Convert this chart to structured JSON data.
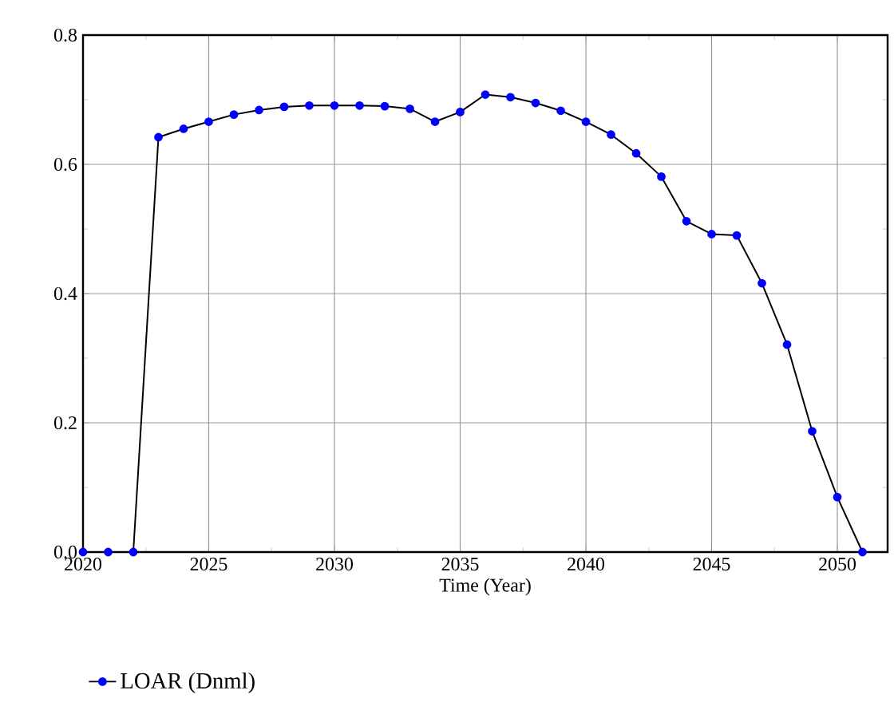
{
  "chart_data": {
    "type": "line",
    "xlabel": "Time (Year)",
    "x": [
      2020,
      2021,
      2022,
      2023,
      2024,
      2025,
      2026,
      2027,
      2028,
      2029,
      2030,
      2031,
      2032,
      2033,
      2034,
      2035,
      2036,
      2037,
      2038,
      2039,
      2040,
      2041,
      2042,
      2043,
      2044,
      2045,
      2046,
      2047,
      2048,
      2049,
      2050,
      2051
    ],
    "series": [
      {
        "name": "LOAR (Dnml)",
        "color": "#0000ff",
        "values": [
          0,
          0,
          0,
          0.642,
          0.655,
          0.666,
          0.677,
          0.684,
          0.689,
          0.691,
          0.691,
          0.691,
          0.69,
          0.686,
          0.666,
          0.681,
          0.708,
          0.704,
          0.695,
          0.683,
          0.666,
          0.646,
          0.617,
          0.581,
          0.512,
          0.492,
          0.49,
          0.416,
          0.321,
          0.187,
          0.085,
          0.0
        ]
      }
    ],
    "xlim": [
      2020,
      2052
    ],
    "ylim": [
      0,
      0.8
    ],
    "xticks": [
      2020,
      2025,
      2030,
      2035,
      2040,
      2045,
      2050
    ],
    "yticks": [
      {
        "value": 0,
        "label": "0.0"
      },
      {
        "value": 0.2,
        "label": "0.2"
      },
      {
        "value": 0.4,
        "label": "0.4"
      },
      {
        "value": 0.6,
        "label": "0.6"
      },
      {
        "value": 0.8,
        "label": "0.8"
      }
    ],
    "grid": true,
    "legend": "bottom",
    "marker": "circle",
    "line_style": "solid"
  }
}
